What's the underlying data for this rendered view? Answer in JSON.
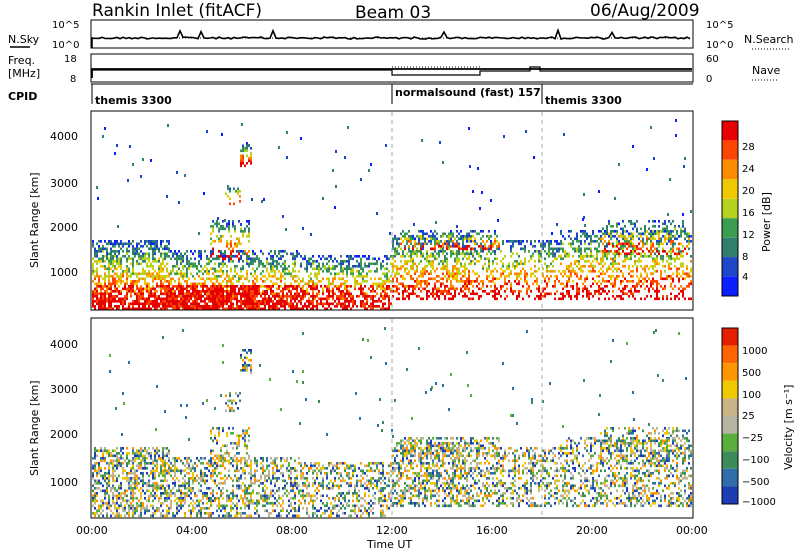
{
  "header": {
    "station_title": "Rankin Inlet (fitACF)",
    "beam": "Beam 03",
    "date": "06/Aug/2009"
  },
  "top_panels": {
    "nsky_label": "N.Sky",
    "nsky_ticks": [
      "10^5",
      "10^0"
    ],
    "nsearch_label": "N.Search",
    "nsearch_ticks": [
      "10^5",
      "10^0"
    ],
    "freq_label_1": "Freq.",
    "freq_label_2": "[MHz]",
    "freq_ticks": [
      "18",
      "8"
    ],
    "nave_label": "Nave",
    "nave_ticks": [
      "60",
      "0"
    ],
    "cpid_label": "CPID",
    "cpid_segments": [
      {
        "label": "themis 3300",
        "start_hour": 0,
        "end_hour": 12
      },
      {
        "label": "normalsound (fast) 157",
        "start_hour": 12,
        "end_hour": 18
      },
      {
        "label": "themis 3300",
        "start_hour": 18,
        "end_hour": 24
      }
    ]
  },
  "chart_data": [
    {
      "type": "heatmap",
      "name": "power",
      "ylabel": "Slant Range [km]",
      "y_ticks": [
        "1000",
        "2000",
        "3000",
        "4000"
      ],
      "ylim": [
        180,
        4500
      ],
      "xlim": [
        0,
        24
      ],
      "colorbar_label": "Power [dB]",
      "colorbar_ticks": [
        "4",
        "8",
        "12",
        "16",
        "20",
        "24",
        "28"
      ],
      "colorbar_colors": [
        "#0a1eff",
        "#1e46c8",
        "#2f7f6e",
        "#3c9c50",
        "#b4d21e",
        "#f0c800",
        "#ff8c00",
        "#ff4600",
        "#e60000"
      ],
      "value_range": [
        0,
        30
      ]
    },
    {
      "type": "heatmap",
      "name": "velocity",
      "ylabel": "Slant Range [km]",
      "y_ticks": [
        "1000",
        "2000",
        "3000",
        "4000"
      ],
      "ylim": [
        180,
        4500
      ],
      "xlim": [
        0,
        24
      ],
      "colorbar_label": "Velocity [m s⁻¹]",
      "colorbar_ticks": [
        "1000",
        "500",
        "100",
        "25",
        "−25",
        "−100",
        "−500",
        "−1000"
      ],
      "colorbar_colors": [
        "#1e3cb4",
        "#2f6eaa",
        "#3c8c5a",
        "#5aaf3c",
        "#b4b4a0",
        "#c8b488",
        "#f0c800",
        "#ff9600",
        "#ff6400",
        "#e61e00"
      ],
      "value_range": [
        -1000,
        1000
      ]
    }
  ],
  "x_axis": {
    "ticks": [
      "00:00",
      "04:00",
      "08:00",
      "12:00",
      "16:00",
      "20:00",
      "00:00"
    ],
    "label": "Time UT"
  },
  "colors": {
    "dashed_markers": "#aaaaaa"
  }
}
